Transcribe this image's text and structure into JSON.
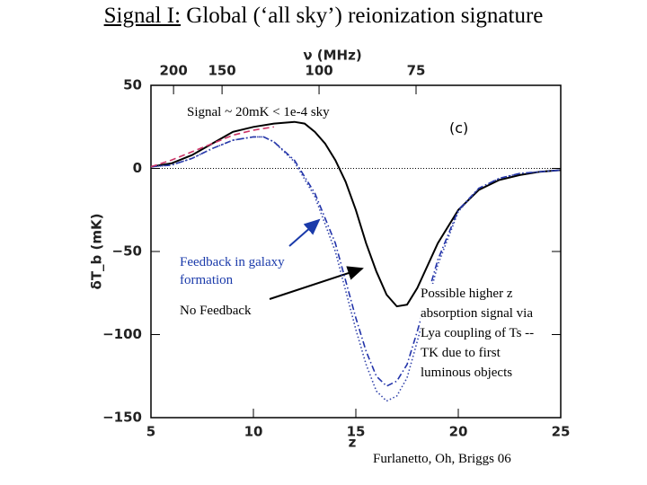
{
  "title_prefix": "Signal I:",
  "title_rest": " Global (‘all sky’) reionization signature",
  "chart_data": {
    "type": "line",
    "xlabel": "z",
    "ylabel": "δT_b (mK)",
    "x2label": "ν (MHz)",
    "xlim": [
      5,
      25
    ],
    "ylim": [
      -150,
      50
    ],
    "xticks": [
      5,
      10,
      15,
      20,
      25
    ],
    "yticks": [
      50,
      0,
      {
        "value": -50,
        "label": "−50"
      },
      {
        "value": -100,
        "label": "−100"
      },
      {
        "value": -150,
        "label": "−150"
      }
    ],
    "x2ticks": [
      200,
      150,
      100,
      75
    ],
    "panel_label": "(c)",
    "series": [
      {
        "color": "#000000",
        "dash": "solid",
        "x": [
          5,
          6,
          7,
          8,
          9,
          10,
          11,
          12,
          12.5,
          13,
          13.5,
          14,
          14.5,
          15,
          15.5,
          16,
          16.5,
          17,
          17.5,
          18,
          19,
          20,
          21,
          22,
          23,
          24,
          25
        ],
        "values": [
          1,
          3,
          8,
          15,
          22,
          25,
          27,
          28,
          27,
          22,
          15,
          5,
          -8,
          -25,
          -45,
          -62,
          -76,
          -83,
          -82,
          -72,
          -45,
          -25,
          -13,
          -7,
          -4,
          -2,
          -1
        ]
      },
      {
        "color": "#2233aa",
        "dash": "dashdot",
        "x": [
          5,
          6,
          7,
          8,
          9,
          10,
          10.5,
          11,
          12,
          13,
          14,
          15,
          15.5,
          16,
          16.5,
          17,
          17.5,
          18,
          19,
          20,
          21,
          22,
          23,
          24,
          25
        ],
        "values": [
          1,
          2,
          6,
          12,
          17,
          19,
          19,
          16,
          5,
          -15,
          -45,
          -90,
          -110,
          -125,
          -131,
          -128,
          -118,
          -98,
          -55,
          -25,
          -12,
          -6,
          -3,
          -2,
          -1
        ]
      },
      {
        "color": "#3344aa",
        "dash": "dotted",
        "x": [
          5,
          6,
          7,
          8,
          9,
          10,
          10.5,
          11,
          12,
          13,
          14,
          15,
          15.5,
          16,
          16.5,
          17,
          17.5,
          18,
          19,
          20,
          21,
          22,
          23,
          24,
          25
        ],
        "values": [
          1,
          2,
          6,
          12,
          17,
          19,
          19,
          16,
          4,
          -17,
          -50,
          -97,
          -118,
          -134,
          -140,
          -137,
          -126,
          -104,
          -58,
          -26,
          -12,
          -6,
          -3,
          -2,
          -1
        ]
      },
      {
        "color": "#cc3366",
        "dash": "dashed",
        "x": [
          5,
          6,
          7,
          8,
          9,
          10,
          10.5,
          11
        ],
        "values": [
          1,
          5,
          10,
          15,
          20,
          23,
          24,
          25
        ]
      }
    ]
  },
  "annotations": {
    "signal": "Signal ~ 20mK < 1e-4 sky",
    "feedback": "Feedback in galaxy formation",
    "no_feedback": "No Feedback",
    "higher_z": "Possible higher z absorption signal via Lya coupling of Ts -- TK due to first luminous objects",
    "credit": "Furlanetto, Oh, Briggs 06"
  }
}
